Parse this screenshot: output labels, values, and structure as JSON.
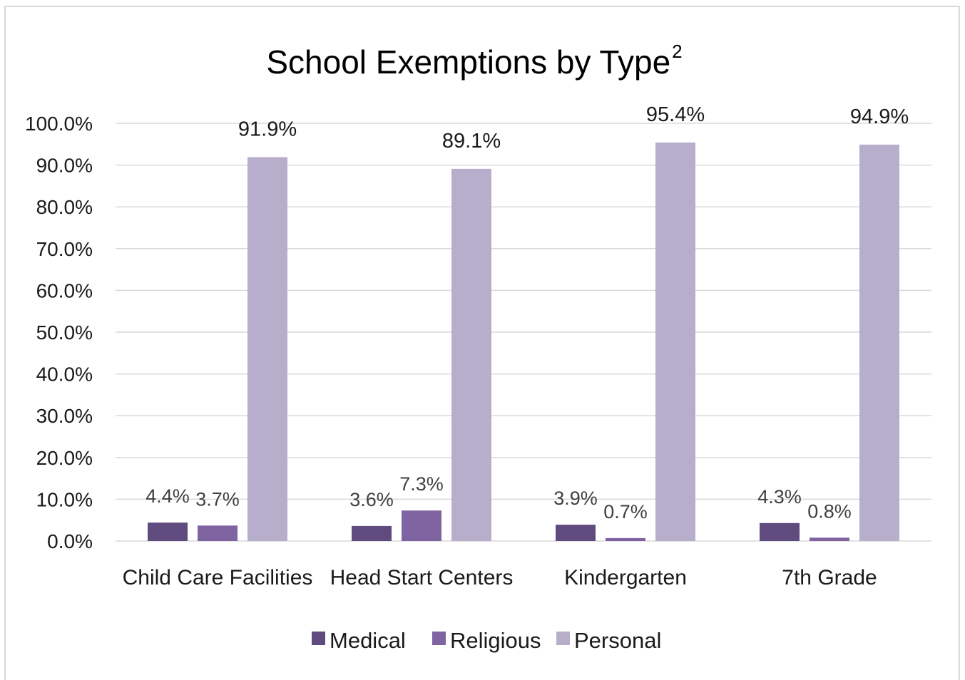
{
  "chart_data": {
    "type": "bar",
    "title": "School Exemptions by Type",
    "title_superscript": "2",
    "categories": [
      "Child Care Facilities",
      "Head Start Centers",
      "Kindergarten",
      "7th Grade"
    ],
    "series": [
      {
        "name": "Medical",
        "values": [
          4.4,
          3.6,
          3.9,
          4.3
        ],
        "labels": [
          "4.4%",
          "3.6%",
          "3.9%",
          "4.3%"
        ],
        "color": "#5f4b7d"
      },
      {
        "name": "Religious",
        "values": [
          3.7,
          7.3,
          0.7,
          0.8
        ],
        "labels": [
          "3.7%",
          "7.3%",
          "0.7%",
          "0.8%"
        ],
        "color": "#8064a2"
      },
      {
        "name": "Personal",
        "values": [
          91.9,
          89.1,
          95.4,
          94.9
        ],
        "labels": [
          "91.9%",
          "89.1%",
          "95.4%",
          "94.9%"
        ],
        "color": "#b7aecb"
      }
    ],
    "y_ticks": [
      "0.0%",
      "10.0%",
      "20.0%",
      "30.0%",
      "40.0%",
      "50.0%",
      "60.0%",
      "70.0%",
      "80.0%",
      "90.0%",
      "100.0%"
    ],
    "ylim": [
      0,
      100
    ],
    "xlabel": "",
    "ylabel": "",
    "grid": true,
    "legend_position": "bottom"
  }
}
